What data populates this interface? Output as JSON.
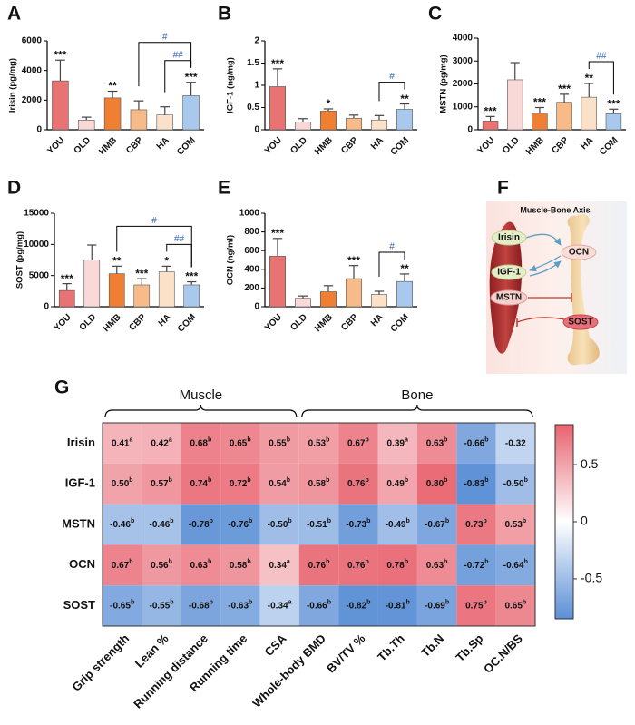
{
  "chart_data": [
    {
      "type": "bar",
      "panel_label": "A",
      "ylabel": "Irisin (pg/mg)",
      "categories": [
        "YOU",
        "OLD",
        "HMB",
        "CBP",
        "HA",
        "COM"
      ],
      "values": [
        3300,
        650,
        2150,
        1350,
        1000,
        2300
      ],
      "errors": [
        1400,
        200,
        450,
        600,
        550,
        900
      ],
      "significance": [
        "***",
        null,
        "**",
        null,
        null,
        "***"
      ],
      "comparisons": [
        {
          "groups": [
            "CBP",
            "COM"
          ],
          "label": "#"
        },
        {
          "groups": [
            "HA",
            "COM"
          ],
          "label": "##"
        }
      ],
      "colors": [
        "#e87373",
        "#f9d8d8",
        "#ef7f33",
        "#f6bb88",
        "#fce1c9",
        "#a8c8ee"
      ],
      "ylim": [
        0,
        6000
      ],
      "yticks": [
        0,
        2000,
        4000,
        6000
      ]
    },
    {
      "type": "bar",
      "panel_label": "B",
      "ylabel": "IGF-1 (ng/mg)",
      "categories": [
        "YOU",
        "OLD",
        "HMB",
        "CBP",
        "HA",
        "COM"
      ],
      "values": [
        0.97,
        0.17,
        0.42,
        0.26,
        0.22,
        0.46
      ],
      "errors": [
        0.4,
        0.08,
        0.05,
        0.07,
        0.1,
        0.12
      ],
      "significance": [
        "***",
        null,
        "*",
        null,
        null,
        "**"
      ],
      "comparisons": [
        {
          "groups": [
            "HA",
            "COM"
          ],
          "label": "#"
        }
      ],
      "colors": [
        "#e87373",
        "#f9d8d8",
        "#ef7f33",
        "#f6bb88",
        "#fce1c9",
        "#a8c8ee"
      ],
      "ylim": [
        0,
        2
      ],
      "yticks": [
        0,
        0.5,
        1,
        1.5,
        2
      ]
    },
    {
      "type": "bar",
      "panel_label": "C",
      "ylabel": "MSTN (pg/mg)",
      "categories": [
        "YOU",
        "OLD",
        "HMB",
        "CBP",
        "HA",
        "COM"
      ],
      "values": [
        380,
        2180,
        720,
        1200,
        1420,
        700
      ],
      "errors": [
        200,
        750,
        250,
        350,
        600,
        200
      ],
      "significance": [
        "***",
        null,
        "***",
        "***",
        "**",
        "***"
      ],
      "comparisons": [
        {
          "groups": [
            "HA",
            "COM"
          ],
          "label": "##"
        }
      ],
      "colors": [
        "#e87373",
        "#f9d8d8",
        "#ef7f33",
        "#f6bb88",
        "#fce1c9",
        "#a8c8ee"
      ],
      "ylim": [
        0,
        4000
      ],
      "yticks": [
        0,
        1000,
        2000,
        3000,
        4000
      ]
    },
    {
      "type": "bar",
      "panel_label": "D",
      "ylabel": "SOST (pg/mg)",
      "categories": [
        "YOU",
        "OLD",
        "HMB",
        "CBP",
        "HA",
        "COM"
      ],
      "values": [
        2600,
        7500,
        5300,
        3500,
        5600,
        3500
      ],
      "errors": [
        1100,
        2400,
        1200,
        1000,
        900,
        500
      ],
      "significance": [
        "***",
        null,
        "**",
        "***",
        "*",
        "***"
      ],
      "comparisons": [
        {
          "groups": [
            "HMB",
            "COM"
          ],
          "label": "#"
        },
        {
          "groups": [
            "HA",
            "COM"
          ],
          "label": "##"
        }
      ],
      "colors": [
        "#e87373",
        "#f9d8d8",
        "#ef7f33",
        "#f6bb88",
        "#fce1c9",
        "#a8c8ee"
      ],
      "ylim": [
        0,
        15000
      ],
      "yticks": [
        0,
        5000,
        10000,
        15000
      ]
    },
    {
      "type": "bar",
      "panel_label": "E",
      "ylabel": "OCN (ng/ml)",
      "categories": [
        "YOU",
        "OLD",
        "HMB",
        "CBP",
        "HA",
        "COM"
      ],
      "values": [
        540,
        90,
        160,
        300,
        130,
        270
      ],
      "errors": [
        190,
        25,
        65,
        140,
        35,
        80
      ],
      "significance": [
        "***",
        null,
        null,
        "***",
        null,
        "**"
      ],
      "comparisons": [
        {
          "groups": [
            "HA",
            "COM"
          ],
          "label": "#"
        }
      ],
      "colors": [
        "#e87373",
        "#f9d8d8",
        "#ef7f33",
        "#f6bb88",
        "#fce1c9",
        "#a8c8ee"
      ],
      "ylim": [
        0,
        1000
      ],
      "yticks": [
        0,
        200,
        400,
        600,
        800,
        1000
      ]
    },
    {
      "type": "heatmap",
      "panel_label": "G",
      "rows": [
        "Irisin",
        "IGF-1",
        "MSTN",
        "OCN",
        "SOST"
      ],
      "columns": [
        "Grip strength",
        "Lean %",
        "Running distance",
        "Running time",
        "CSA",
        "Whole-body BMD",
        "BV/TV %",
        "Tb.Th",
        "Tb.N",
        "Tb.Sp",
        "OC.N/BS"
      ],
      "groups": [
        {
          "name": "Muscle",
          "columns": [
            "Grip strength",
            "CSA"
          ]
        },
        {
          "name": "Bone",
          "columns": [
            "Whole-body BMD",
            "OC.N/BS"
          ]
        }
      ],
      "values": [
        [
          0.41,
          0.42,
          0.68,
          0.65,
          0.55,
          0.53,
          0.67,
          0.39,
          0.63,
          -0.66,
          -0.32
        ],
        [
          0.5,
          0.57,
          0.74,
          0.72,
          0.54,
          0.58,
          0.76,
          0.49,
          0.8,
          -0.83,
          -0.5
        ],
        [
          -0.46,
          -0.46,
          -0.78,
          -0.76,
          -0.5,
          -0.51,
          -0.73,
          -0.49,
          -0.67,
          0.73,
          0.53
        ],
        [
          0.67,
          0.56,
          0.63,
          0.58,
          0.34,
          0.76,
          0.76,
          0.78,
          0.63,
          -0.72,
          -0.64
        ],
        [
          -0.65,
          -0.55,
          -0.68,
          -0.63,
          -0.34,
          -0.66,
          -0.82,
          -0.81,
          -0.69,
          0.75,
          0.65
        ]
      ],
      "value_labels": [
        [
          "0.41",
          "0.42",
          "0.68",
          "0.65",
          "0.55",
          "0.53",
          "0.67",
          "0.39",
          "0.63",
          "-0.66",
          "-0.32"
        ],
        [
          "0.50",
          "0.57",
          "0.74",
          "0.72",
          "0.54",
          "0.58",
          "0.76",
          "0.49",
          "0.80",
          "-0.83",
          "-0.50"
        ],
        [
          "-0.46",
          "-0.46",
          "-0.78",
          "-0.76",
          "-0.50",
          "-0.51",
          "-0.73",
          "-0.49",
          "-0.67",
          "0.73",
          "0.53"
        ],
        [
          "0.67",
          "0.56",
          "0.63",
          "0.58",
          "0.34",
          "0.76",
          "0.76",
          "0.78",
          "0.63",
          "-0.72",
          "-0.64"
        ],
        [
          "-0.65",
          "-0.55",
          "-0.68",
          "-0.63",
          "-0.34",
          "-0.66",
          "-0.82",
          "-0.81",
          "-0.69",
          "0.75",
          "0.65"
        ]
      ],
      "superscripts": [
        [
          "a",
          "a",
          "b",
          "b",
          "b",
          "b",
          "b",
          "a",
          "b",
          "b",
          null
        ],
        [
          "b",
          "b",
          "b",
          "b",
          "b",
          "b",
          "b",
          "b",
          "b",
          "b",
          "b"
        ],
        [
          "b",
          "b",
          "b",
          "b",
          "b",
          "b",
          "b",
          "b",
          "b",
          "b",
          "b"
        ],
        [
          "b",
          "b",
          "b",
          "b",
          "a",
          "b",
          "b",
          "b",
          "b",
          "b",
          "b"
        ],
        [
          "b",
          "b",
          "b",
          "b",
          "a",
          "b",
          "b",
          "b",
          "b",
          "b",
          "b"
        ]
      ],
      "colors": [
        "#5b8fd6",
        "#ffffff",
        "#e8636f"
      ],
      "zlim": [
        -0.85,
        0.85
      ],
      "zticks": [
        0.5,
        0,
        -0.5
      ]
    }
  ],
  "diagram": {
    "panel_label": "F",
    "title": "Muscle-Bone Axis",
    "nodes": [
      {
        "label": "Irisin"
      },
      {
        "label": "IGF-1"
      },
      {
        "label": "MSTN"
      },
      {
        "label": "OCN"
      },
      {
        "label": "SOST"
      }
    ]
  }
}
